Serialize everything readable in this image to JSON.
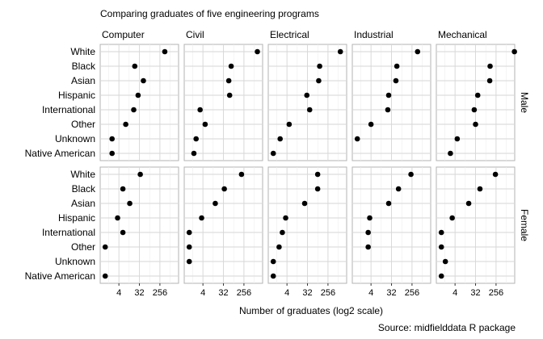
{
  "chart_data": {
    "type": "scatter",
    "title": "Comparing graduates of five engineering programs",
    "xlabel": "Number of graduates (log2 scale)",
    "caption": "Source: midfielddata R package",
    "x_scale": "log2",
    "xlim": [
      0.6,
      1700
    ],
    "xticks": [
      4,
      32,
      256
    ],
    "xtick_labels": [
      "4",
      "32",
      "256"
    ],
    "grid": true,
    "programs": [
      "Computer",
      "Civil",
      "Electrical",
      "Industrial",
      "Mechanical"
    ],
    "sexes": [
      "Male",
      "Female"
    ],
    "race": [
      "White",
      "Black",
      "Asian",
      "Hispanic",
      "International",
      "Other",
      "Unknown",
      "Native American"
    ],
    "values": {
      "Male": {
        "Computer": [
          420,
          20,
          48,
          28,
          18,
          8,
          2,
          2
        ],
        "Civil": [
          1000,
          70,
          55,
          60,
          3,
          5,
          2,
          1.6
        ],
        "Electrical": [
          900,
          110,
          100,
          30,
          40,
          5,
          2,
          1
        ],
        "Industrial": [
          450,
          55,
          50,
          24,
          22,
          4,
          1,
          null
        ],
        "Mechanical": [
          1650,
          140,
          135,
          40,
          28,
          32,
          5,
          2.5
        ]
      },
      "Female": {
        "Computer": [
          35,
          6,
          12,
          3.5,
          6,
          1,
          null,
          1
        ],
        "Civil": [
          200,
          35,
          14,
          3.5,
          1,
          1,
          1,
          null
        ],
        "Electrical": [
          90,
          90,
          24,
          3.5,
          2.5,
          1.8,
          1,
          1
        ],
        "Industrial": [
          230,
          65,
          24,
          3.5,
          3,
          3,
          null,
          null
        ],
        "Mechanical": [
          240,
          50,
          16,
          3,
          1,
          1,
          1.5,
          1
        ]
      }
    }
  }
}
